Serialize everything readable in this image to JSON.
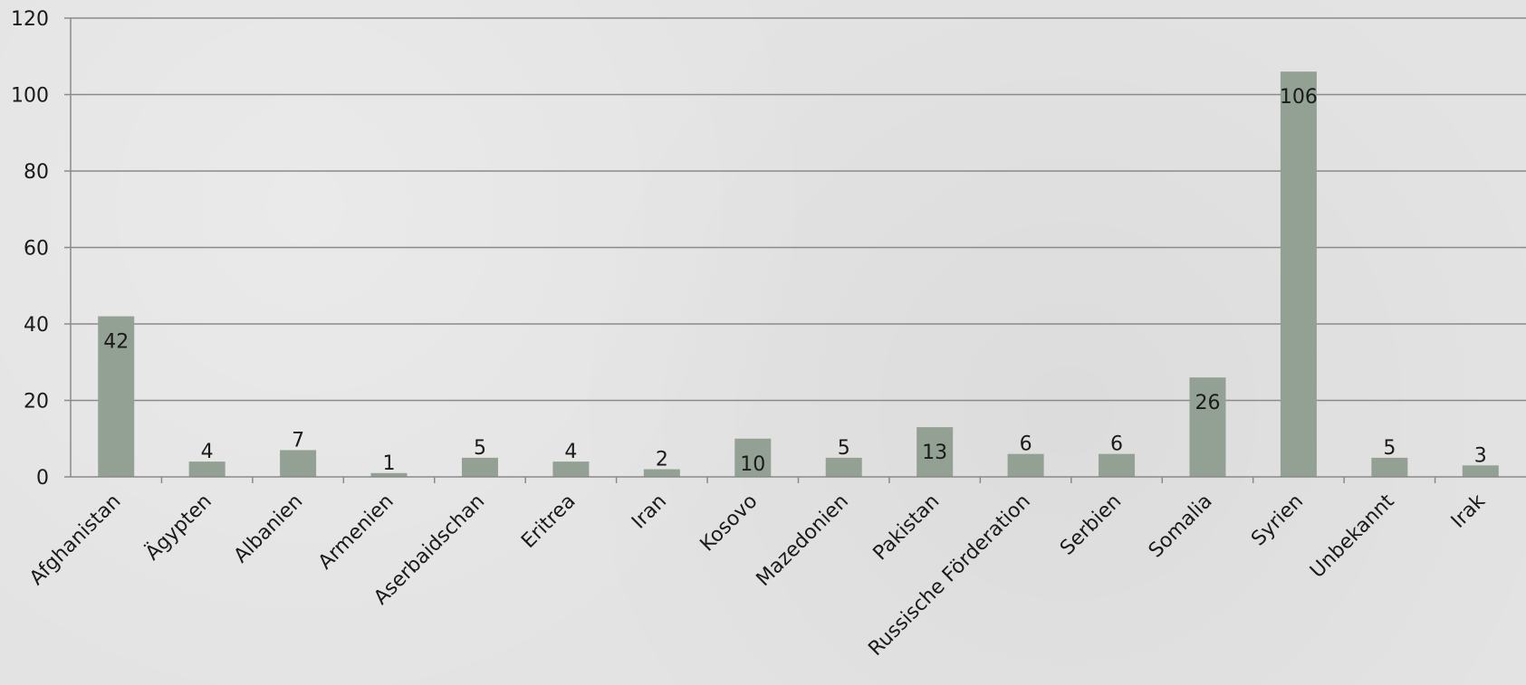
{
  "chart_data": {
    "type": "bar",
    "categories": [
      "Afghanistan",
      "Ägypten",
      "Albanien",
      "Armenien",
      "Aserbaidschan",
      "Eritrea",
      "Iran",
      "Kosovo",
      "Mazedonien",
      "Pakistan",
      "Russische Förderation",
      "Serbien",
      "Somalia",
      "Syrien",
      "Unbekannt",
      "Irak"
    ],
    "values": [
      42,
      4,
      7,
      1,
      5,
      4,
      2,
      10,
      5,
      13,
      6,
      6,
      26,
      106,
      5,
      3
    ],
    "data_labels": [
      "42",
      "4",
      "7",
      "1",
      "5",
      "4",
      "2",
      "10",
      "5",
      "13",
      "6",
      "6",
      "26",
      "106",
      "5",
      "3"
    ],
    "title": "",
    "xlabel": "",
    "ylabel": "",
    "ylim": [
      0,
      120
    ],
    "yticks": [
      "0",
      "20",
      "40",
      "60",
      "80",
      "100",
      "120"
    ],
    "grid": true,
    "legend": "none",
    "colors": {
      "bar": "#93a194",
      "grid": "#8a8a8a",
      "axis": "#8a8a8a",
      "text": "#1a1a1a",
      "background": "#e3e3e3"
    }
  }
}
